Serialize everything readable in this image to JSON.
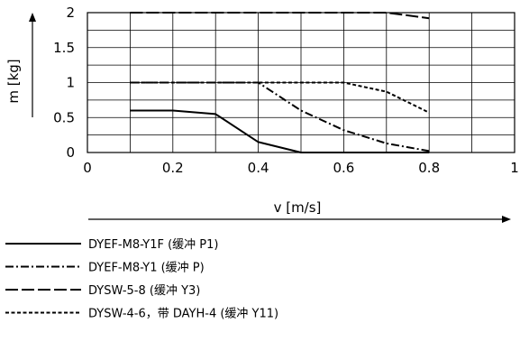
{
  "chart_data": {
    "type": "line",
    "xlabel": "v [m/s]",
    "ylabel": "m [kg]",
    "xlim": [
      0,
      1
    ],
    "ylim": [
      0,
      2
    ],
    "xticks": [
      "0",
      "0.2",
      "0.4",
      "0.6",
      "0.8",
      "1"
    ],
    "yticks": [
      "0",
      "0.5",
      "1",
      "1.5",
      "2"
    ],
    "grid": true,
    "legend_position": "bottom",
    "series": [
      {
        "name": "DYEF-M8-Y1F (缓冲 P1)",
        "line_style": "solid",
        "x": [
          0.1,
          0.2,
          0.3,
          0.4,
          0.5,
          0.6,
          0.7,
          0.8
        ],
        "y": [
          0.6,
          0.6,
          0.55,
          0.15,
          0.0,
          0.0,
          0.0,
          0.0
        ]
      },
      {
        "name": "DYEF-M8-Y1 (缓冲 P)",
        "line_style": "dash-dot",
        "x": [
          0.1,
          0.2,
          0.3,
          0.4,
          0.5,
          0.6,
          0.7,
          0.8
        ],
        "y": [
          1.0,
          1.0,
          1.0,
          1.0,
          0.6,
          0.32,
          0.13,
          0.02
        ]
      },
      {
        "name": "DYSW-5-8 (缓冲 Y3)",
        "line_style": "long-dash",
        "x": [
          0.1,
          0.2,
          0.3,
          0.4,
          0.5,
          0.6,
          0.7,
          0.8
        ],
        "y": [
          2.0,
          2.0,
          2.0,
          2.0,
          2.0,
          2.0,
          2.0,
          1.92
        ]
      },
      {
        "name": "DYSW-4-6，带 DAYH-4 (缓冲 Y11)",
        "line_style": "short-dash",
        "x": [
          0.1,
          0.2,
          0.3,
          0.4,
          0.5,
          0.6,
          0.7,
          0.8
        ],
        "y": [
          1.0,
          1.0,
          1.0,
          1.0,
          1.0,
          1.0,
          0.87,
          0.57
        ]
      }
    ]
  }
}
